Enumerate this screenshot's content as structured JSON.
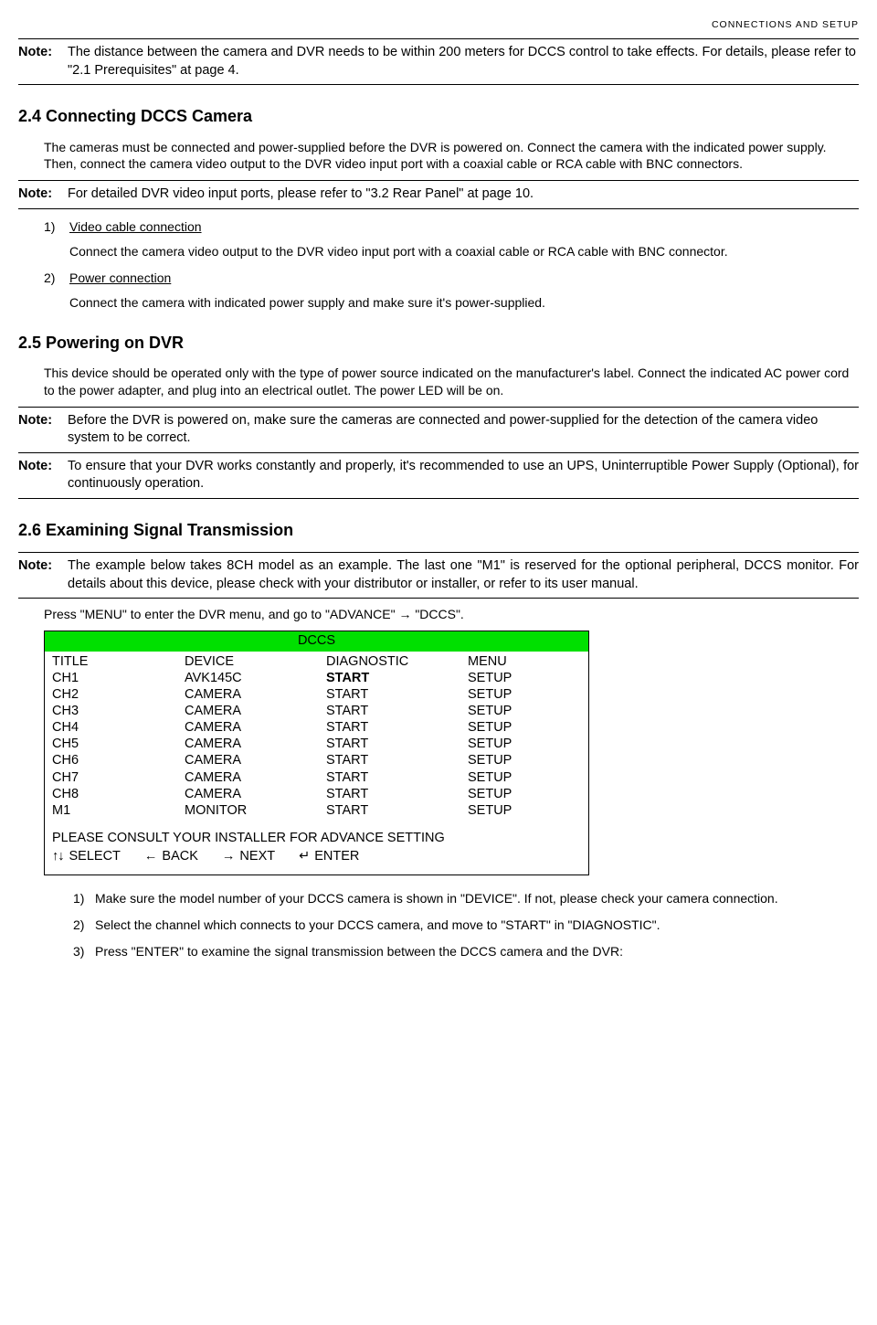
{
  "header": {
    "title": "CONNECTIONS AND SETUP"
  },
  "notes": {
    "label": "Note:",
    "n1": "The distance between the camera and DVR needs to be within 200 meters for DCCS control to take effects. For details, please refer to \"2.1 Prerequisites\" at page 4.",
    "n2": "For detailed DVR video input ports, please refer to \"3.2 Rear Panel\" at page 10.",
    "n3": "Before the DVR is powered on, make sure the cameras are connected and power-supplied for the detection of the camera video system to be correct.",
    "n4": "To ensure that your DVR works constantly and properly, it's recommended to use an UPS, Uninterruptible Power Supply (Optional), for continuously operation.",
    "n5": "The example below takes 8CH model as an example. The last one \"M1\" is reserved for the optional peripheral, DCCS monitor. For details about this device, please check with your distributor or installer, or refer to its user manual."
  },
  "s24": {
    "title": "2.4 Connecting DCCS Camera",
    "p1": "The cameras must be connected and power-supplied before the DVR is powered on. Connect the camera with the indicated power supply. Then, connect the camera video output to the DVR video input port with a coaxial cable or RCA cable with BNC connectors.",
    "item1_num": "1)",
    "item1_title": "Video cable connection",
    "item1_body": "Connect the camera video output to the DVR video input port with a coaxial cable or RCA cable with BNC connector.",
    "item2_num": "2)",
    "item2_title": "Power connection",
    "item2_body": "Connect the camera with indicated power supply and make sure it's power-supplied."
  },
  "s25": {
    "title": "2.5 Powering on DVR",
    "p1": "This device should be operated only with the type of power source indicated on the manufacturer's label. Connect the indicated AC power cord to the power adapter, and plug into an electrical outlet. The power LED will be on."
  },
  "s26": {
    "title": "2.6 Examining Signal Transmission",
    "instr": "Press \"MENU\" to enter the DVR menu, and go to \"ADVANCE\" → \"DCCS\".",
    "box": {
      "header": "DCCS",
      "header_bg": "#00e000",
      "columns": [
        "TITLE",
        "DEVICE",
        "DIAGNOSTIC",
        "MENU"
      ],
      "rows": [
        [
          "CH1",
          "AVK145C",
          "START",
          "SETUP"
        ],
        [
          "CH2",
          "CAMERA",
          "START",
          "SETUP"
        ],
        [
          "CH3",
          "CAMERA",
          "START",
          "SETUP"
        ],
        [
          "CH4",
          "CAMERA",
          "START",
          "SETUP"
        ],
        [
          "CH5",
          "CAMERA",
          "START",
          "SETUP"
        ],
        [
          "CH6",
          "CAMERA",
          "START",
          "SETUP"
        ],
        [
          "CH7",
          "CAMERA",
          "START",
          "SETUP"
        ],
        [
          "CH8",
          "CAMERA",
          "START",
          "SETUP"
        ],
        [
          "M1",
          "MONITOR",
          "START",
          "SETUP"
        ]
      ],
      "bold_diag_row": 0,
      "footer1": "PLEASE CONSULT YOUR INSTALLER FOR ADVANCE SETTING",
      "nav": {
        "select_sym": "↑↓",
        "select": "SELECT",
        "back_sym": "←",
        "back": "BACK",
        "next_sym": "→",
        "next": "NEXT",
        "enter_sym": "↵",
        "enter": "ENTER"
      }
    },
    "steps": {
      "s1n": "1)",
      "s1": "Make sure the model number of your DCCS camera is shown in \"DEVICE\". If not, please check your camera connection.",
      "s2n": "2)",
      "s2": "Select the channel which connects to your DCCS camera, and move to \"START\" in \"DIAGNOSTIC\".",
      "s3n": "3)",
      "s3": "Press \"ENTER\" to examine the signal transmission between the DCCS camera and the DVR:"
    }
  }
}
